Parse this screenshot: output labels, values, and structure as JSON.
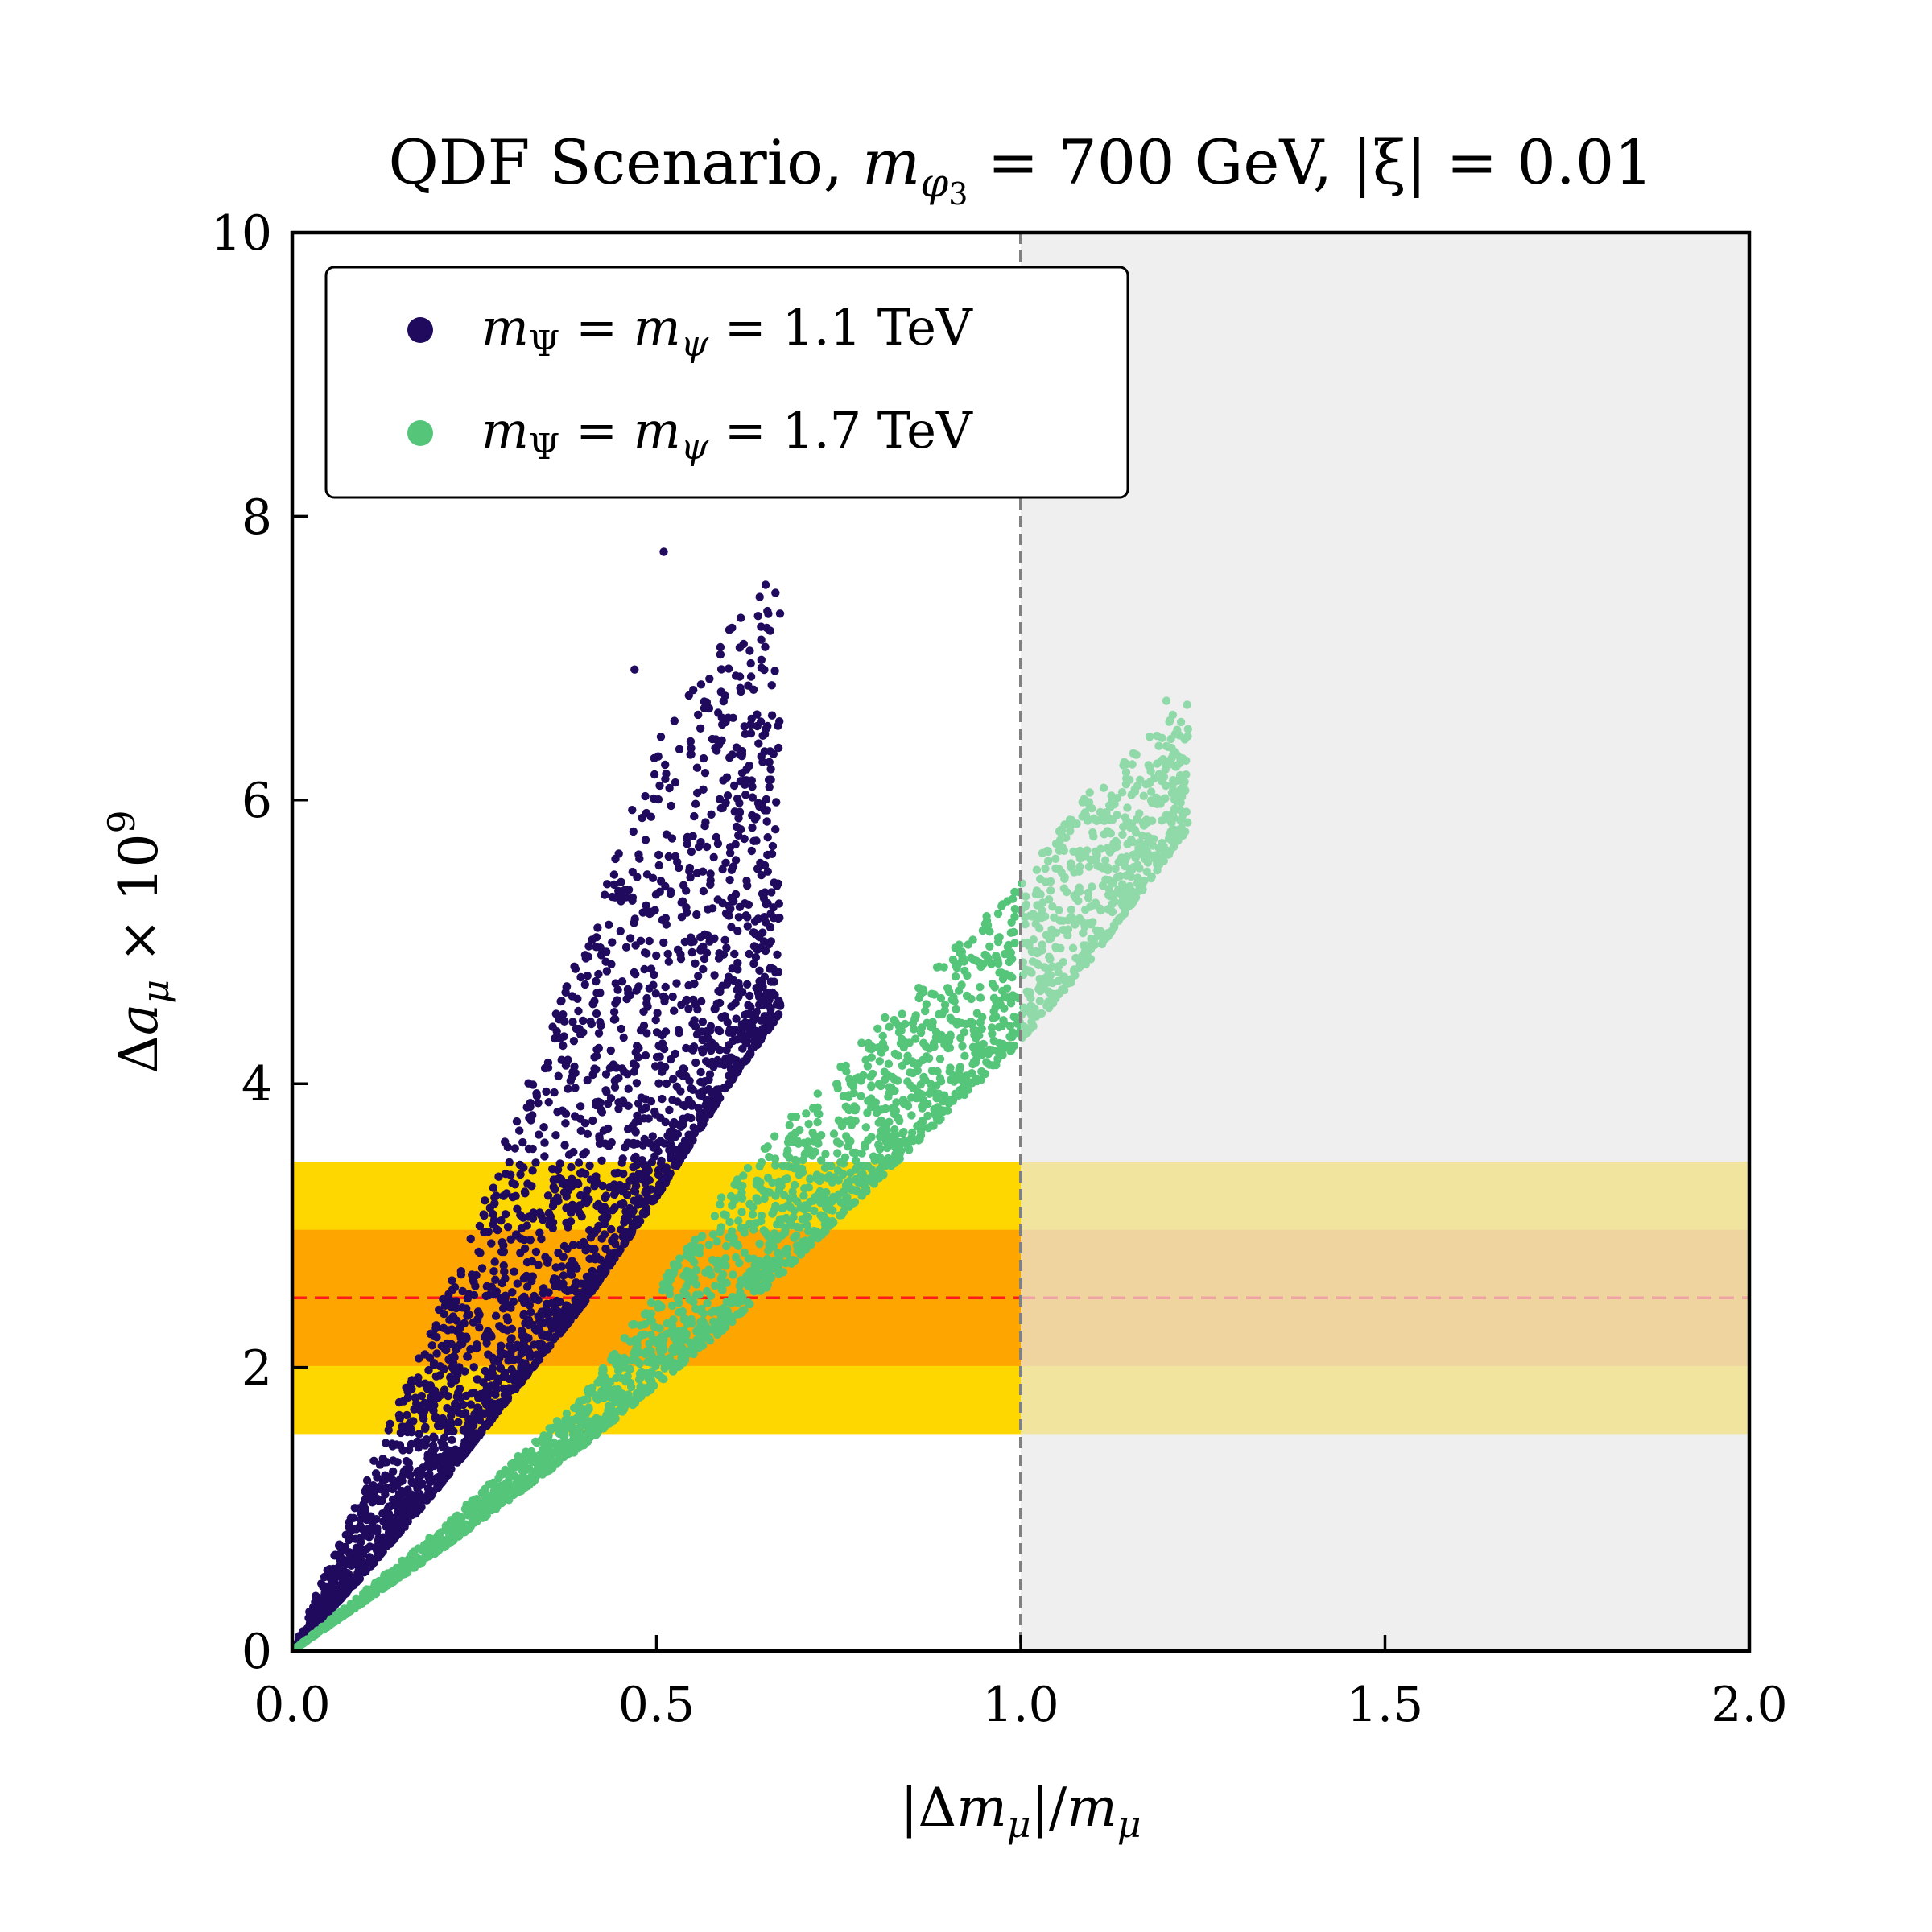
{
  "chart_data": {
    "type": "scatter",
    "title": "QDF Scenario, m_φ3 = 700 GeV, |ξ| = 0.01",
    "title_parts": {
      "prefix": "QDF Scenario, ",
      "m": "m",
      "m_sub": "φ",
      "m_subsub": "3",
      "mass_eq": " = 700 GeV, ",
      "xi": "|ξ| = 0.01"
    },
    "xlabel": "|Δm_μ|/m_μ",
    "xlabel_parts": {
      "a": "|Δ",
      "m1": "m",
      "s1": "μ",
      "b": "|/",
      "m2": "m",
      "s2": "μ"
    },
    "ylabel": "Δa_μ × 10^9",
    "ylabel_parts": {
      "a": "Δ",
      "var": "a",
      "sub": "μ",
      "times": " × 10",
      "exp": "9"
    },
    "xlim": [
      0.0,
      2.0
    ],
    "ylim": [
      0,
      10
    ],
    "x_ticks": [
      "0.0",
      "0.5",
      "1.0",
      "1.5",
      "2.0"
    ],
    "y_ticks": [
      "0",
      "2",
      "4",
      "6",
      "8",
      "10"
    ],
    "central_value": 2.49,
    "band_1sigma": [
      2.01,
      2.97
    ],
    "band_2sigma": [
      1.53,
      3.45
    ],
    "excluded_region_x": [
      1.0,
      2.0
    ],
    "colors": {
      "series_1": "#1f0a5e",
      "series_2": "#55c57a",
      "band_1sigma": "#ffa500",
      "band_2sigma": "#ffd700",
      "central_line": "#ff1a1a",
      "excluded": "#e6e6e6",
      "vline": "#808080"
    },
    "legend_position": "top-left",
    "series": [
      {
        "name": "m_Ψ = m_ψ = 1.1 TeV",
        "label_parts": {
          "m1": "m",
          "s1": "Ψ",
          "eq1": " = ",
          "m2": "m",
          "s2": "ψ",
          "eq2": " = 1.1 TeV"
        },
        "approx_points": 4000,
        "x_range": [
          0.0,
          0.67
        ],
        "envelope": {
          "x": [
            0.0,
            0.1,
            0.2,
            0.3,
            0.4,
            0.5,
            0.6,
            0.67
          ],
          "y_low": [
            0.0,
            0.55,
            1.15,
            1.8,
            2.45,
            3.2,
            4.0,
            4.5
          ],
          "y_high": [
            0.0,
            1.2,
            2.4,
            3.7,
            5.0,
            6.4,
            7.2,
            7.75
          ]
        },
        "highlights": [
          {
            "x": 0.51,
            "y": 7.75
          },
          {
            "x": 0.6,
            "y": 7.2
          },
          {
            "x": 0.63,
            "y": 6.87
          },
          {
            "x": 0.65,
            "y": 6.5
          },
          {
            "x": 0.47,
            "y": 6.92
          }
        ]
      },
      {
        "name": "m_Ψ = m_ψ = 1.7 TeV",
        "label_parts": {
          "m1": "m",
          "s1": "Ψ",
          "eq1": " = ",
          "m2": "m",
          "s2": "ψ",
          "eq2": " = 1.7 TeV"
        },
        "approx_points": 4000,
        "x_range": [
          0.0,
          1.23
        ],
        "envelope": {
          "x": [
            0.0,
            0.2,
            0.4,
            0.6,
            0.8,
            1.0,
            1.1,
            1.23
          ],
          "y_low": [
            0.0,
            0.7,
            1.45,
            2.3,
            3.3,
            4.3,
            4.9,
            5.8
          ],
          "y_high": [
            0.0,
            0.85,
            1.8,
            3.3,
            4.4,
            5.45,
            6.1,
            6.7
          ]
        },
        "highlights": [
          {
            "x": 1.2,
            "y": 6.7
          },
          {
            "x": 1.22,
            "y": 6.55
          }
        ]
      }
    ]
  }
}
